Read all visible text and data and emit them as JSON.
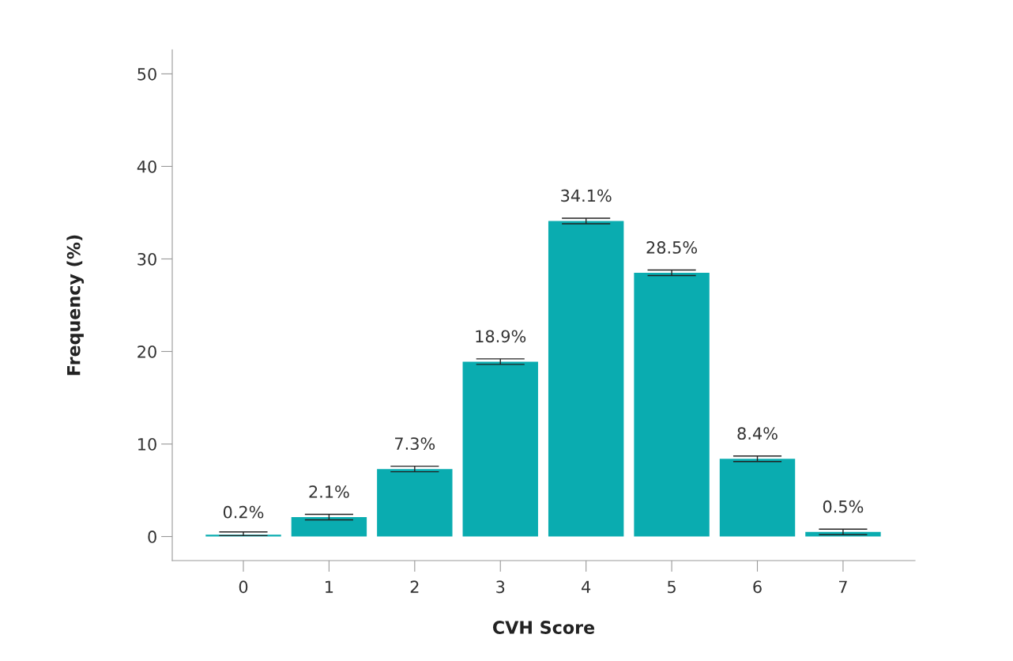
{
  "chart_data": {
    "type": "bar",
    "xlabel": "CVH Score",
    "ylabel": "Frequency (%)",
    "categories": [
      "0",
      "1",
      "2",
      "3",
      "4",
      "5",
      "6",
      "7"
    ],
    "values": [
      0.2,
      2.1,
      7.3,
      18.9,
      34.1,
      28.5,
      8.4,
      0.5
    ],
    "value_labels": [
      "0.2%",
      "2.1%",
      "7.3%",
      "18.9%",
      "34.1%",
      "28.5%",
      "8.4%",
      "0.5%"
    ],
    "errors": [
      [
        0.1,
        0.5
      ],
      0.3,
      0.3,
      0.3,
      0.3,
      0.3,
      0.3,
      0.3
    ],
    "color": "#0aacb0",
    "ylim": [
      -2.6,
      52.6
    ],
    "yticks": [
      0,
      10,
      20,
      30,
      40,
      50
    ],
    "grid": false,
    "legend": false
  }
}
